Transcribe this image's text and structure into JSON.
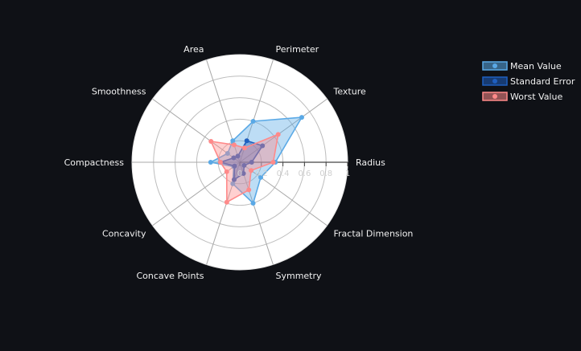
{
  "chart_data": {
    "type": "radar",
    "axes": [
      "Radius",
      "Texture",
      "Perimeter",
      "Area",
      "Smoothness",
      "Compactness",
      "Concavity",
      "Concave Points",
      "Symmetry",
      "Fractal Dimension"
    ],
    "radial_range": [
      0,
      1
    ],
    "radial_ticks": [
      0,
      0.2,
      0.4,
      0.6,
      0.8,
      1
    ],
    "radial_tick_labels": [
      "0",
      "0.2",
      "0.4",
      "0.6",
      "0.8",
      "1"
    ],
    "series": [
      {
        "name": "Mean Value",
        "color": "#5aa9e6",
        "values": [
          0.33,
          0.71,
          0.4,
          0.21,
          0.14,
          0.27,
          0.07,
          0.21,
          0.4,
          0.24
        ]
      },
      {
        "name": "Standard Error",
        "color": "#1f5fbf",
        "values": [
          0.11,
          0.26,
          0.21,
          0.06,
          0.07,
          0.18,
          0.06,
          0.17,
          0.11,
          0.05
        ]
      },
      {
        "name": "Worst Value",
        "color": "#ff8a8a",
        "values": [
          0.31,
          0.44,
          0.14,
          0.17,
          0.33,
          0.18,
          0.15,
          0.39,
          0.27,
          0.13
        ]
      }
    ],
    "legend": {
      "position": "top-right"
    },
    "grid": true
  }
}
